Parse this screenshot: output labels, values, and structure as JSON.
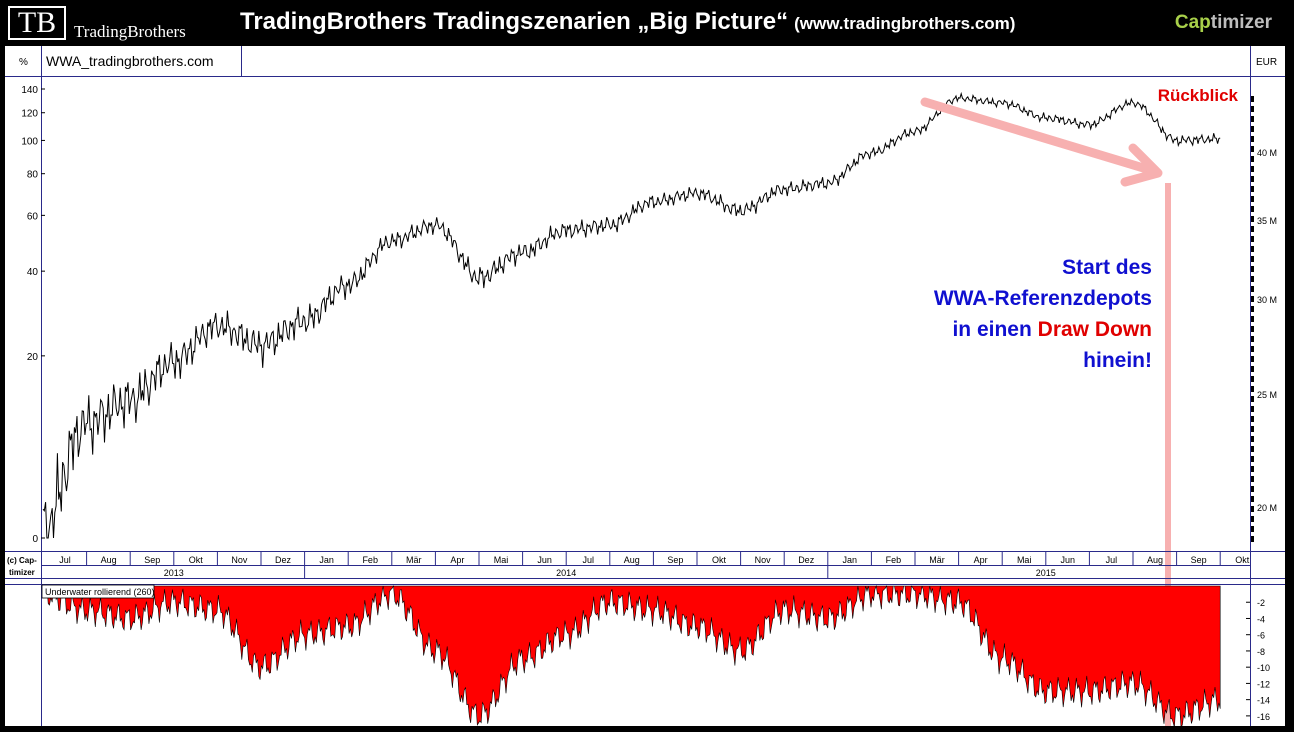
{
  "header": {
    "logo": "TB",
    "logo_text": "TradingBrothers",
    "title": "TradingBrothers Tradingszenarien „Big Picture“",
    "title_url": "(www.tradingbrothers.com)",
    "brand_a": "Cap",
    "brand_b": "timizer"
  },
  "toolbar": {
    "unit_left": "%",
    "symbol": "WWA_tradingbrothers.com",
    "unit_right": "EUR"
  },
  "annotations": {
    "rueckblick": "Rückblick",
    "start_line1": "Start des",
    "start_line2": "WWA-Referenzdepots",
    "start_line3a": "in einen ",
    "start_line3b": "Draw Down",
    "start_line4": "hinein!"
  },
  "time_axis": {
    "copyright": "(c) Cap-",
    "copyright2": "timizer",
    "months": [
      "Jul",
      "Aug",
      "Sep",
      "Okt",
      "Nov",
      "Dez",
      "Jan",
      "Feb",
      "Mär",
      "Apr",
      "Mai",
      "Jun",
      "Jul",
      "Aug",
      "Sep",
      "Okt",
      "Nov",
      "Dez",
      "Jan",
      "Feb",
      "Mär",
      "Apr",
      "Mai",
      "Jun",
      "Jul",
      "Aug",
      "Sep",
      "Okt"
    ],
    "years": [
      "2013",
      "2014",
      "2015"
    ]
  },
  "colors": {
    "line": "#000000",
    "underwater_fill": "#ff0000",
    "arrow": "#f7b0b0",
    "annotation_blue": "#1010d0",
    "annotation_red": "#e00000",
    "axis_frame": "#2a2a8a"
  },
  "chart_data": [
    {
      "type": "line",
      "series": [],
      "y_ticks_left": [
        "140",
        "120",
        "100",
        "80",
        "60",
        "40",
        "20",
        "0"
      ],
      "y_ticks_right": [
        "40 M",
        "35 M",
        "30 M",
        "25 M",
        "20 M"
      ],
      "x": [
        "2013-06",
        "2013-07",
        "2013-08",
        "2013-09",
        "2013-10",
        "2013-11",
        "2013-12",
        "2014-01",
        "2014-02",
        "2014-03",
        "2014-04",
        "2014-05",
        "2014-06",
        "2014-07",
        "2014-08",
        "2014-09",
        "2014-10",
        "2014-11",
        "2014-12",
        "2015-01",
        "2015-02",
        "2015-03",
        "2015-04",
        "2015-05",
        "2015-06",
        "2015-07",
        "2015-08",
        "2015-09"
      ],
      "values": [
        0,
        10,
        13,
        19,
        26,
        22,
        27,
        36,
        50,
        56,
        38,
        46,
        54,
        56,
        66,
        70,
        62,
        72,
        75,
        92,
        106,
        132,
        128,
        116,
        111,
        128,
        100,
        101
      ]
    },
    {
      "type": "area",
      "title": "Underwater rollierend (260)",
      "y_ticks": [
        "-2",
        "-4",
        "-6",
        "-8",
        "-10",
        "-12",
        "-14",
        "-16"
      ],
      "ylim": [
        -17,
        0
      ],
      "x": [
        "2013-06",
        "2013-07",
        "2013-08",
        "2013-09",
        "2013-10",
        "2013-11",
        "2013-12",
        "2014-01",
        "2014-02",
        "2014-03",
        "2014-04",
        "2014-05",
        "2014-06",
        "2014-07",
        "2014-08",
        "2014-09",
        "2014-10",
        "2014-11",
        "2014-12",
        "2015-01",
        "2015-02",
        "2015-03",
        "2015-04",
        "2015-05",
        "2015-06",
        "2015-07",
        "2015-08",
        "2015-09"
      ],
      "values": [
        -1,
        -3,
        -4,
        -2,
        -3,
        -10,
        -6,
        -5,
        -1,
        -8,
        -16,
        -9,
        -6,
        -2,
        -3,
        -5,
        -8,
        -3,
        -4,
        -1,
        -1,
        -2,
        -9,
        -13,
        -13,
        -12,
        -16,
        -14
      ]
    }
  ]
}
